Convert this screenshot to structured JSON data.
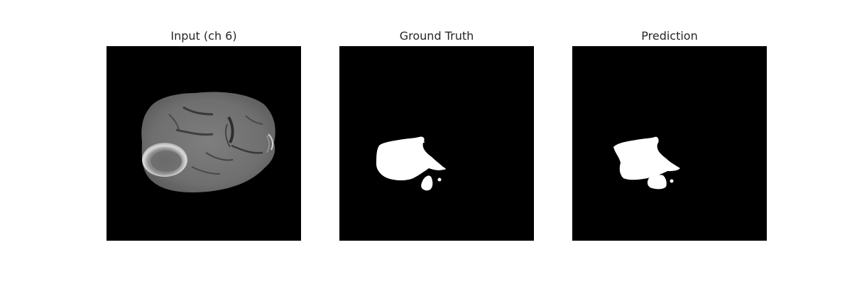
{
  "figure": {
    "panels": [
      {
        "title": "Input (ch 6)",
        "icon": "mri-brain-slice-image"
      },
      {
        "title": "Ground Truth",
        "icon": "binary-mask-image"
      },
      {
        "title": "Prediction",
        "icon": "binary-mask-image"
      }
    ],
    "colors": {
      "background": "#ffffff",
      "image_background": "#000000",
      "mask_foreground": "#ffffff"
    }
  }
}
